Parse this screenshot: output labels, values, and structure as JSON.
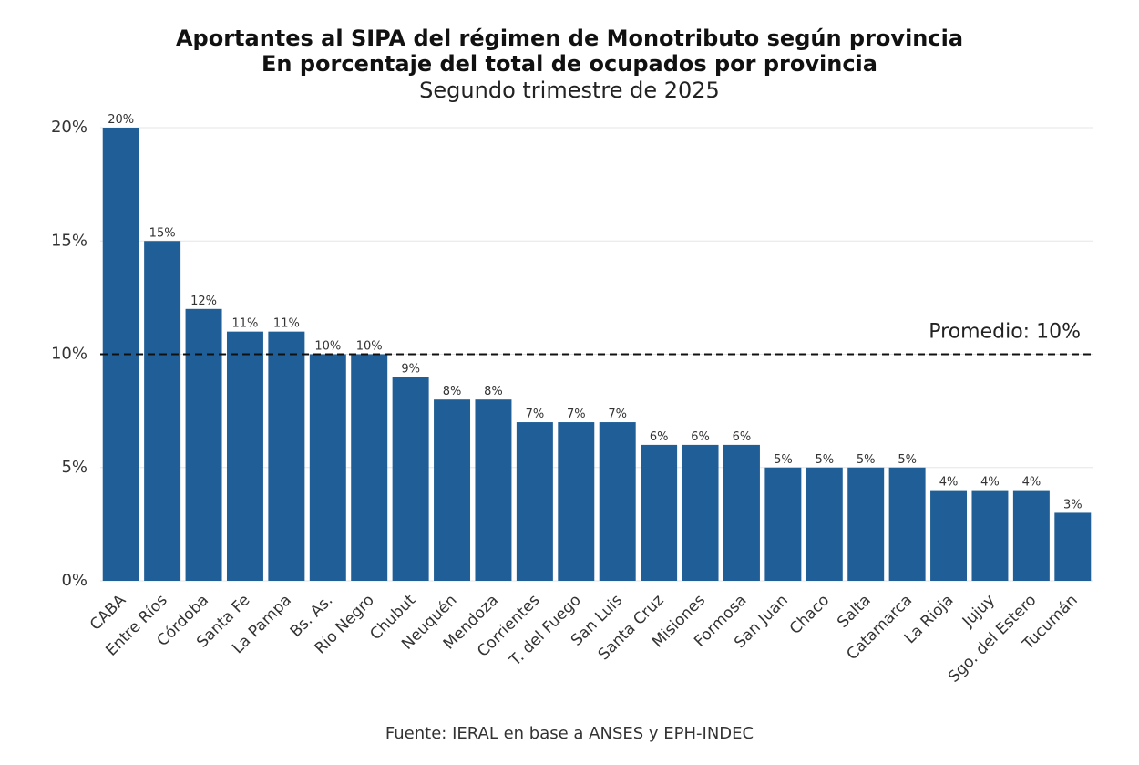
{
  "chart_data": {
    "type": "bar",
    "title": "Aportantes al SIPA del régimen de Monotributo según provincia",
    "title_line2": "En porcentaje del total de ocupados por provincia",
    "subtitle": "Segundo trimestre de 2025",
    "source": "Fuente: IERAL en base a ANSES y EPH-INDEC",
    "categories": [
      "CABA",
      "Entre Ríos",
      "Córdoba",
      "Santa Fe",
      "La Pampa",
      "Bs. As.",
      "Río Negro",
      "Chubut",
      "Neuquén",
      "Mendoza",
      "Corrientes",
      "T. del Fuego",
      "San Luis",
      "Santa Cruz",
      "Misiones",
      "Formosa",
      "San Juan",
      "Chaco",
      "Salta",
      "Catamarca",
      "La Rioja",
      "Jujuy",
      "Sgo. del Estero",
      "Tucumán"
    ],
    "values": [
      20,
      15,
      12,
      11,
      11,
      10,
      10,
      9,
      8,
      8,
      7,
      7,
      7,
      6,
      6,
      6,
      5,
      5,
      5,
      5,
      4,
      4,
      4,
      3
    ],
    "value_labels": [
      "20%",
      "15%",
      "12%",
      "11%",
      "11%",
      "10%",
      "10%",
      "9%",
      "8%",
      "8%",
      "7%",
      "7%",
      "7%",
      "6%",
      "6%",
      "6%",
      "5%",
      "5%",
      "5%",
      "5%",
      "4%",
      "4%",
      "4%",
      "3%"
    ],
    "color": "#1f5e96",
    "ylim": [
      0,
      20
    ],
    "yticks": [
      {
        "value": 0,
        "label": "0%"
      },
      {
        "value": 5,
        "label": "5%"
      },
      {
        "value": 10,
        "label": "10%"
      },
      {
        "value": 15,
        "label": "15%"
      },
      {
        "value": 20,
        "label": "20%"
      }
    ],
    "grid": true,
    "reference_line": {
      "value": 10,
      "label": "Promedio: 10%"
    }
  }
}
